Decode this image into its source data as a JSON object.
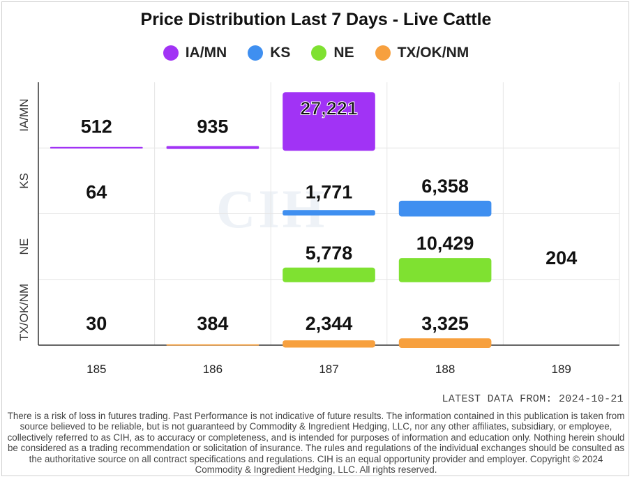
{
  "title": "Price Distribution Last 7 Days - Live Cattle",
  "legend": [
    {
      "label": "IA/MN",
      "color": "#a133f5"
    },
    {
      "label": "KS",
      "color": "#3f8ff0"
    },
    {
      "label": "NE",
      "color": "#7fe131"
    },
    {
      "label": "TX/OK/NM",
      "color": "#f7a03e"
    }
  ],
  "latest_data": "LATEST DATA FROM: 2024-10-21",
  "disclaimer": "There is a risk of loss in futures trading. Past Performance is not indicative of future results. The information contained in this publication is taken from source believed to be reliable, but is not guaranteed by Commodity & Ingredient Hedging, LLC, nor any other affiliates, subsidiary, or employee, collectively referred to as CIH, as to accuracy or completeness, and is intended for purposes of information and education only. Nothing herein should be considered as a trading recommendation or solicitation of insurance. The rules and regulations of the individual exchanges should be consulted as the authoritative source on all contract specifications and regulations. CIH is an equal opportunity provider and employer. Copyright © 2024 Commodity & Ingredient Hedging, LLC. All rights reserved.",
  "watermark": "CIH",
  "chart_data": {
    "type": "bar",
    "title": "Price Distribution Last 7 Days - Live Cattle",
    "categories": [
      "185",
      "186",
      "187",
      "188",
      "189"
    ],
    "rows": [
      "IA/MN",
      "KS",
      "NE",
      "TX/OK/NM"
    ],
    "series": [
      {
        "name": "IA/MN",
        "color": "#a133f5",
        "values": [
          512,
          935,
          27221,
          null,
          null
        ]
      },
      {
        "name": "KS",
        "color": "#3f8ff0",
        "values": [
          64,
          null,
          1771,
          6358,
          null
        ]
      },
      {
        "name": "NE",
        "color": "#7fe131",
        "values": [
          null,
          null,
          5778,
          10429,
          204
        ]
      },
      {
        "name": "TX/OK/NM",
        "color": "#f7a03e",
        "values": [
          30,
          384,
          2344,
          3325,
          null
        ]
      }
    ],
    "value_max": 27221,
    "grid": true,
    "legend_position": "top-center"
  }
}
